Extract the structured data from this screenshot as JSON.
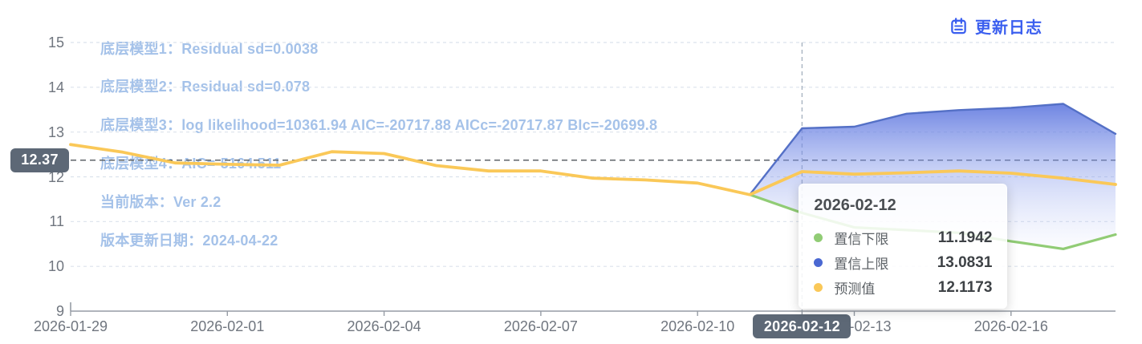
{
  "update_log": {
    "label": "更新日志"
  },
  "annotations": [
    "底层模型1：Residual sd=0.0038",
    "底层模型2：Residual sd=0.078",
    "底层模型3：log likelihood=10361.94 AIC=-20717.88 AICc=-20717.87 BIc=-20699.8",
    "底层模型4：AIC=-5164.511",
    "当前版本：Ver 2.2",
    "版本更新日期：2024-04-22"
  ],
  "tooltip": {
    "title": "2026-02-12",
    "rows": [
      {
        "label": "置信下限",
        "value": "11.1942",
        "color": "#91CC75"
      },
      {
        "label": "置信上限",
        "value": "13.0831",
        "color": "#4A68D2"
      },
      {
        "label": "预测值",
        "value": "12.1173",
        "color": "#FAC858"
      }
    ]
  },
  "axis_pointer": {
    "x_label": "2026-02-12",
    "y_label": "12.37"
  },
  "colors": {
    "link_blue": "#3B5FEF",
    "annotation_blue": "#A5C2E9",
    "badge_bg": "#5D6876",
    "grid_line": "#DBE2EC",
    "mark_line": "#5F6468",
    "pointer_line": "#A9B4C2",
    "axis_line": "#969CA5"
  },
  "chart_data": {
    "type": "line",
    "title": "",
    "xlabel": "",
    "ylabel": "",
    "ylim": [
      9,
      15
    ],
    "yticks": [
      9,
      10,
      11,
      12,
      13,
      14,
      15
    ],
    "grid": "horizontal dashed",
    "legend_position": "none (values shown in hover tooltip)",
    "x": [
      "2026-01-29",
      "2026-01-30",
      "2026-01-31",
      "2026-02-01",
      "2026-02-02",
      "2026-02-03",
      "2026-02-04",
      "2026-02-05",
      "2026-02-06",
      "2026-02-07",
      "2026-02-08",
      "2026-02-09",
      "2026-02-10",
      "2026-02-11",
      "2026-02-12",
      "2026-02-13",
      "2026-02-14",
      "2026-02-15",
      "2026-02-16",
      "2026-02-17",
      "2026-02-18"
    ],
    "x_tick_labels": [
      "2026-01-29",
      "2026-02-01",
      "2026-02-04",
      "2026-02-07",
      "2026-02-10",
      "2026-02-13",
      "2026-02-16"
    ],
    "x_tick_step": 3,
    "series": [
      {
        "name": "预测值",
        "color": "#FAC858",
        "values": [
          12.72,
          12.55,
          12.31,
          12.28,
          12.26,
          12.56,
          12.52,
          12.25,
          12.13,
          12.13,
          11.97,
          11.93,
          11.86,
          11.6,
          12.1173,
          12.06,
          12.09,
          12.13,
          12.08,
          11.97,
          11.83
        ]
      },
      {
        "name": "置信上限",
        "color": "#5470C6",
        "area": "blue gradient fading down to confidence lower bound",
        "values": [
          null,
          null,
          null,
          null,
          null,
          null,
          null,
          null,
          null,
          null,
          null,
          null,
          null,
          11.6,
          13.0831,
          13.12,
          13.41,
          13.49,
          13.54,
          13.63,
          12.96
        ]
      },
      {
        "name": "置信下限",
        "color": "#91CC75",
        "values": [
          null,
          null,
          null,
          null,
          null,
          null,
          null,
          null,
          null,
          null,
          null,
          null,
          null,
          11.6,
          11.1942,
          10.87,
          10.81,
          10.75,
          10.56,
          10.39,
          10.71
        ]
      }
    ],
    "mark_line": {
      "value": 12.37
    },
    "hover_index": 14,
    "hover_date": "2026-02-12"
  }
}
